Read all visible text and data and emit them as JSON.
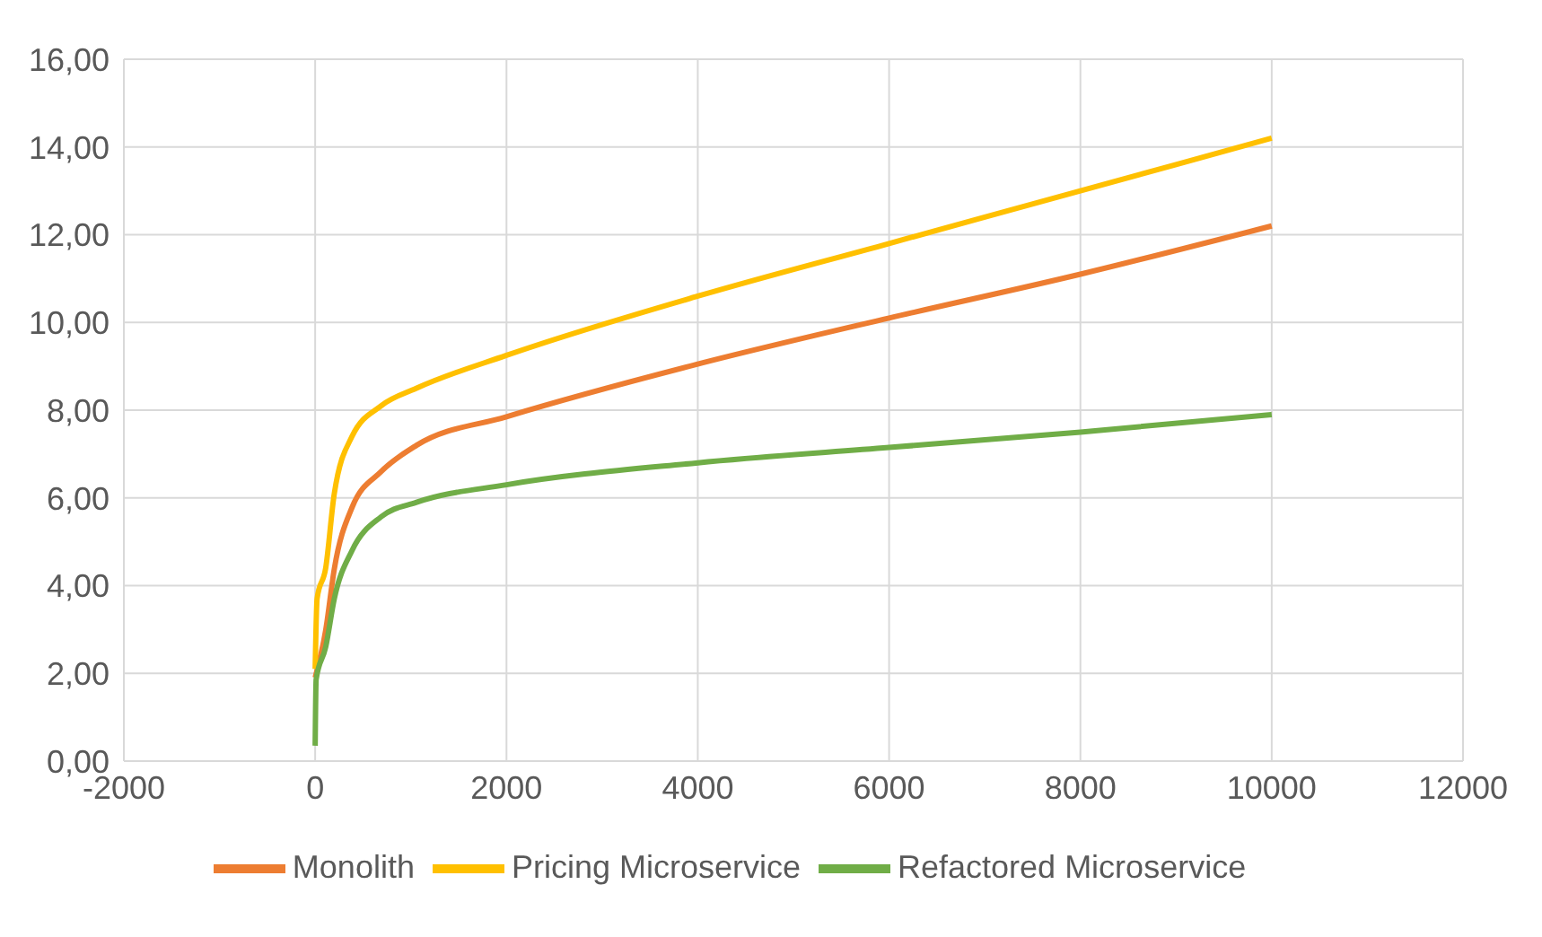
{
  "chart_data": {
    "type": "line",
    "legend": "bottom",
    "grid": true,
    "marker": "none",
    "line_style": "solid",
    "xlim": [
      -2000,
      12000
    ],
    "xticks": [
      -2000,
      0,
      2000,
      4000,
      6000,
      8000,
      10000,
      12000
    ],
    "ylim": [
      0,
      16
    ],
    "yticks": [
      {
        "value": 0,
        "label": "0,00"
      },
      {
        "value": 2,
        "label": "2,00"
      },
      {
        "value": 4,
        "label": "4,00"
      },
      {
        "value": 6,
        "label": "6,00"
      },
      {
        "value": 8,
        "label": "8,00"
      },
      {
        "value": 10,
        "label": "10,00"
      },
      {
        "value": 12,
        "label": "12,00"
      },
      {
        "value": 14,
        "label": "14,00"
      },
      {
        "value": 16,
        "label": "16,00"
      }
    ],
    "series": [
      {
        "name": "Monolith",
        "color": "#ed7d31",
        "x": [
          0,
          110,
          200,
          385,
          690,
          1060,
          2000,
          4000,
          6000,
          8000,
          10000
        ],
        "values": [
          1.9,
          2.98,
          4.38,
          5.78,
          6.6,
          7.2,
          7.85,
          9.05,
          10.1,
          11.1,
          12.2
        ]
      },
      {
        "name": "Pricing Microservice",
        "color": "#ffc000",
        "x": [
          0,
          20,
          110,
          200,
          385,
          690,
          1060,
          2000,
          4000,
          6000,
          8000,
          10000
        ],
        "values": [
          2.1,
          3.7,
          4.4,
          6.1,
          7.4,
          8.1,
          8.5,
          9.25,
          10.6,
          11.8,
          13.0,
          14.2
        ]
      },
      {
        "name": "Refactored Microservice",
        "color": "#70ad47",
        "x": [
          0,
          10,
          110,
          200,
          385,
          690,
          1060,
          2000,
          4000,
          6000,
          8000,
          10000
        ],
        "values": [
          0.35,
          1.86,
          2.6,
          3.7,
          4.8,
          5.57,
          5.9,
          6.3,
          6.8,
          7.15,
          7.5,
          7.9
        ]
      }
    ]
  }
}
